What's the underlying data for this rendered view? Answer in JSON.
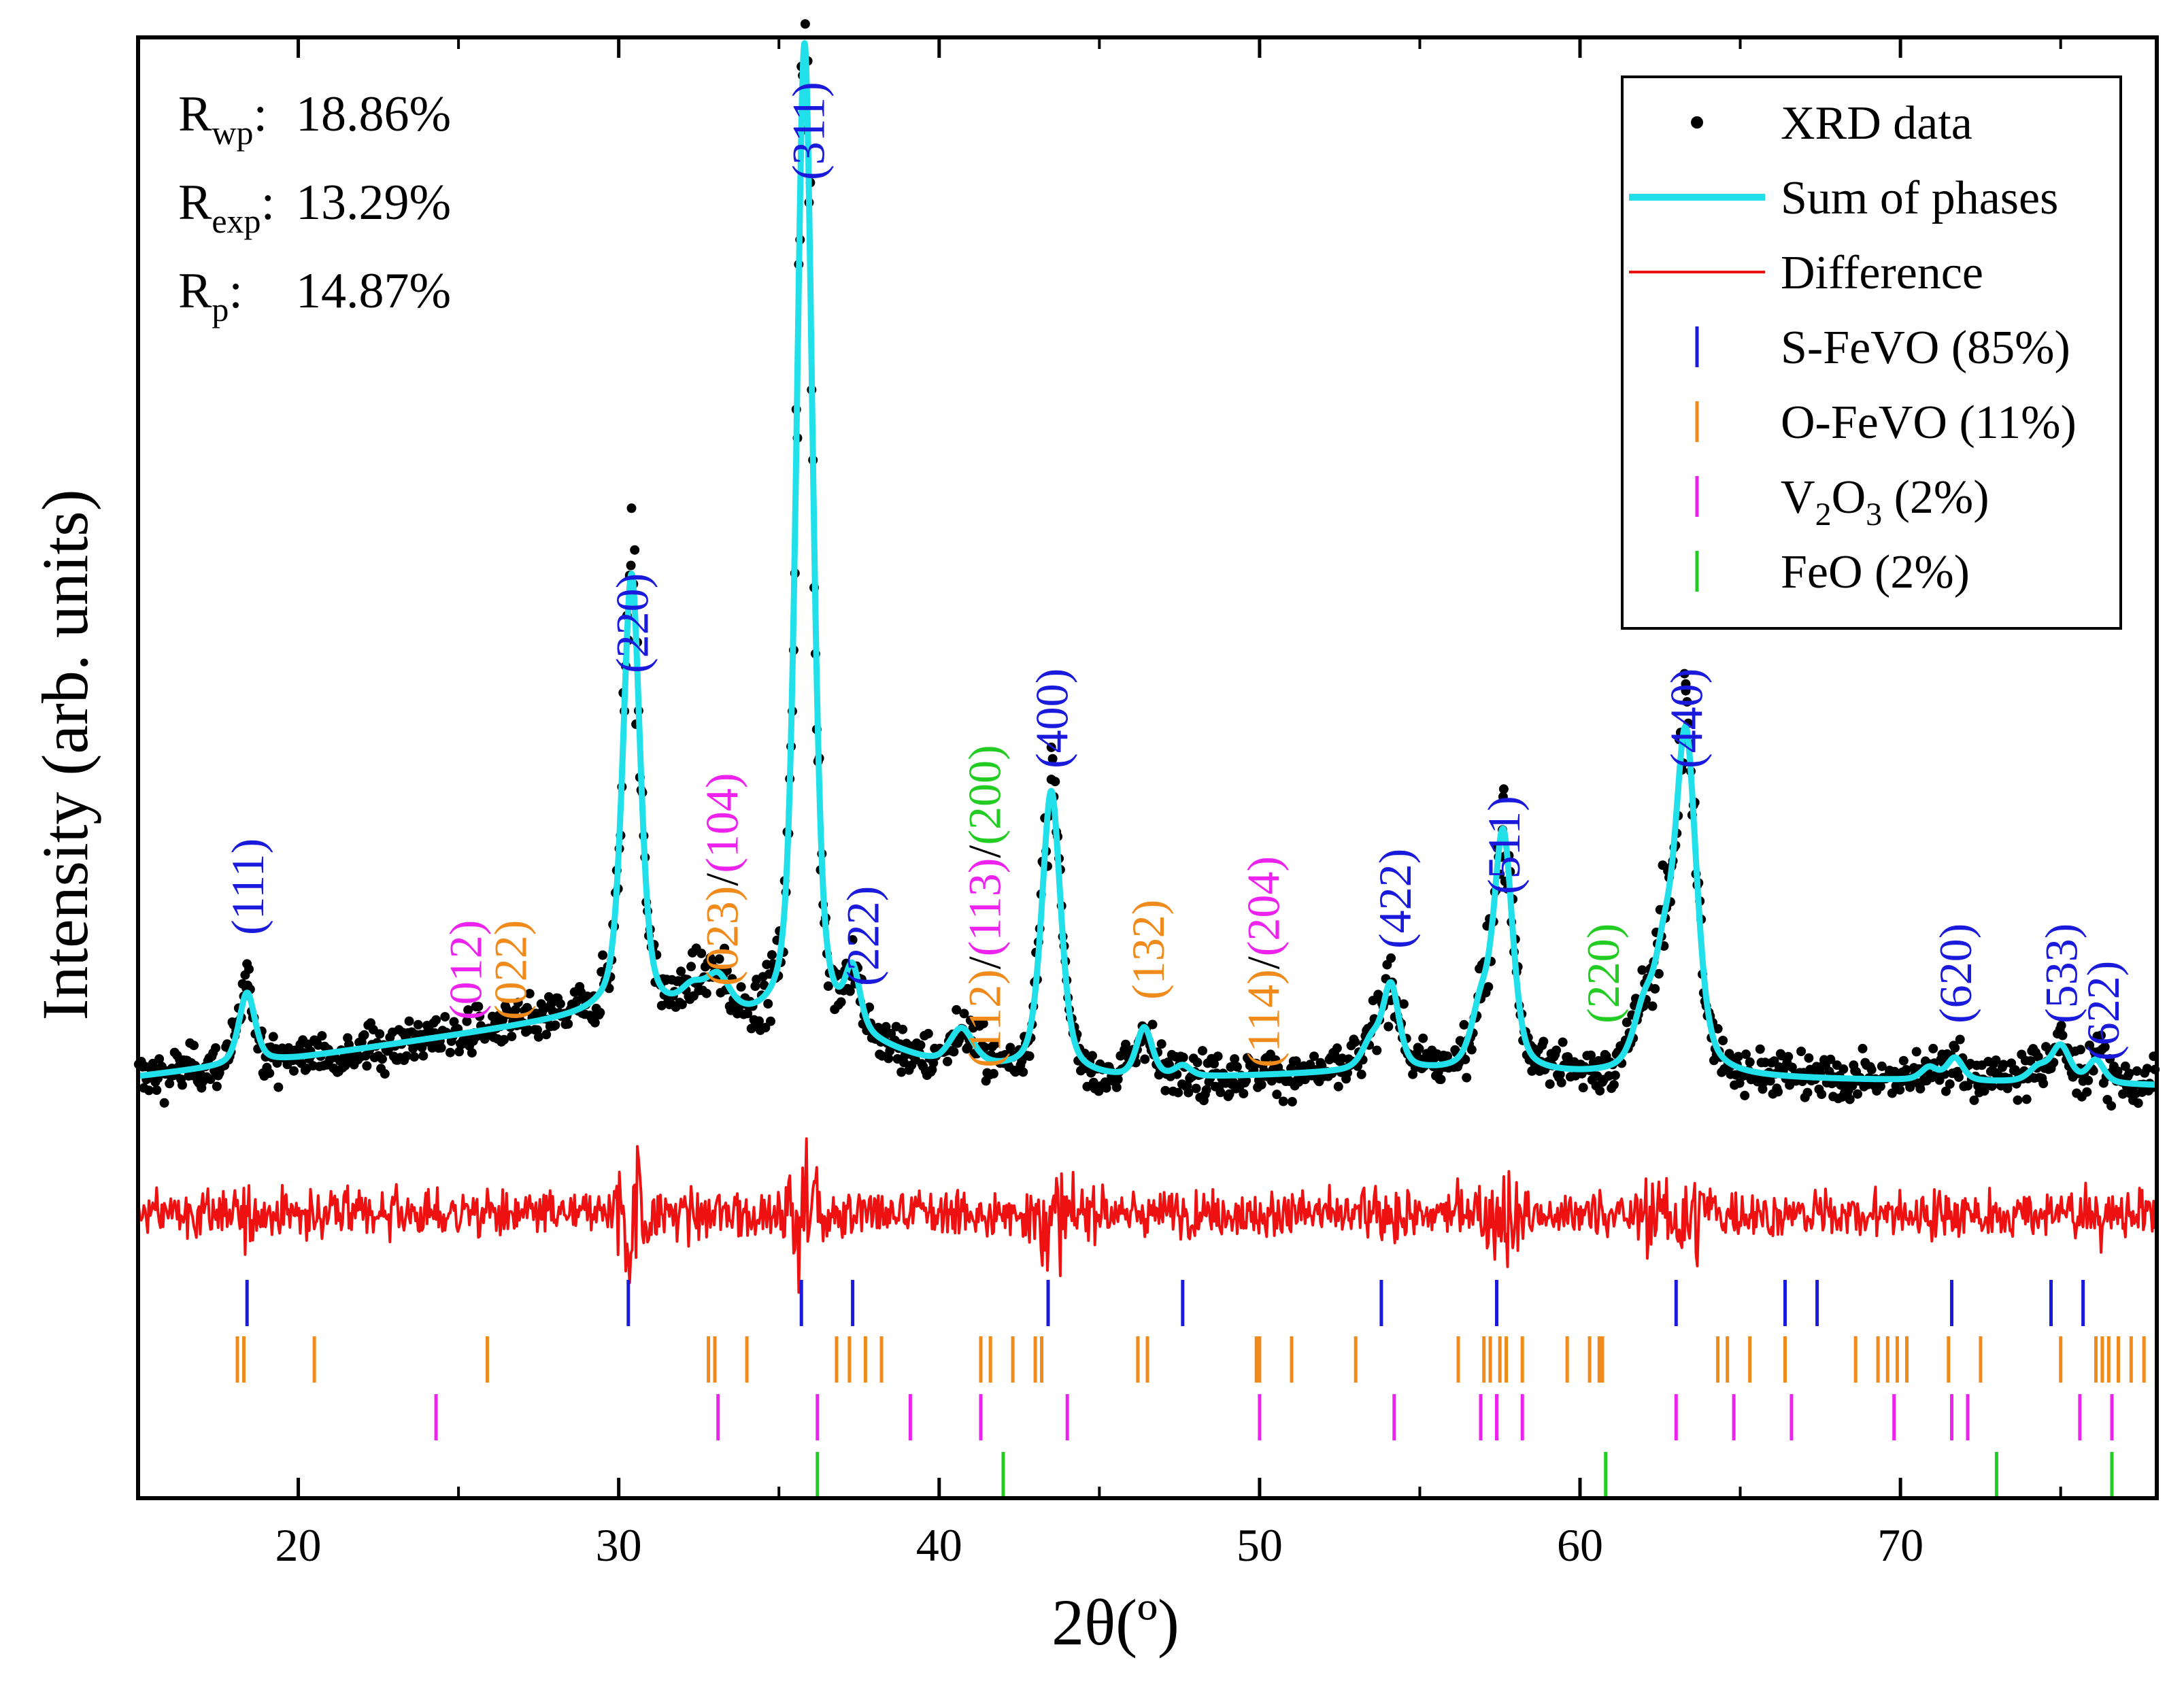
{
  "chart_data": {
    "type": "line",
    "xlabel": "2θ(º)",
    "ylabel": "Intensity (arb. units)",
    "xlim": [
      15,
      78
    ],
    "ylim": [
      0,
      1
    ],
    "x_ticks": [
      20,
      30,
      40,
      50,
      60,
      70
    ],
    "x_tick_labels": [
      "20",
      "30",
      "40",
      "50",
      "60",
      "70"
    ],
    "stats": [
      {
        "label": "R",
        "sub": "wp",
        "value": "18.86%"
      },
      {
        "label": "R",
        "sub": "exp",
        "value": "13.29%"
      },
      {
        "label": "R",
        "sub": "p",
        "value": "14.87%"
      }
    ],
    "legend": {
      "position": "top-right",
      "entries": [
        {
          "key": "xrd",
          "label": "XRD data",
          "color": "#000000",
          "marker": "dot"
        },
        {
          "key": "fit",
          "label": "Sum of phases",
          "color": "#22e0ea",
          "marker": "line-thick"
        },
        {
          "key": "diff",
          "label": "Difference",
          "color": "#ee1111",
          "marker": "line"
        },
        {
          "key": "sfevo",
          "label": "S-FeVO (85%)",
          "color": "#1a1adc",
          "marker": "tick"
        },
        {
          "key": "ofevo",
          "label": "O-FeVO (11%)",
          "color": "#f08a1a",
          "marker": "tick"
        },
        {
          "key": "v2o3",
          "label": "V",
          "sub1": "2",
          "mid": "O",
          "sub2": "3",
          "tail": " (2%)",
          "color": "#ee22ee",
          "marker": "tick"
        },
        {
          "key": "feo",
          "label": "FeO (2%)",
          "color": "#22cc22",
          "marker": "tick"
        }
      ]
    },
    "series": [
      {
        "name": "Sum of phases",
        "color": "#22e0ea",
        "baseline": [
          [
            15,
            0.05
          ],
          [
            20,
            0.07
          ],
          [
            28,
            0.11
          ],
          [
            30,
            0.12
          ],
          [
            36,
            0.1
          ],
          [
            40,
            0.06
          ],
          [
            46,
            0.045
          ],
          [
            54,
            0.055
          ],
          [
            60,
            0.05
          ],
          [
            70,
            0.045
          ],
          [
            78,
            0.04
          ]
        ],
        "peaks": [
          {
            "x": 18.4,
            "height": 0.078,
            "width": 0.3
          },
          {
            "x": 30.4,
            "height": 0.48,
            "width": 0.32
          },
          {
            "x": 32.3,
            "height": 0.025,
            "width": 0.45
          },
          {
            "x": 33.1,
            "height": 0.04,
            "width": 0.45
          },
          {
            "x": 35.8,
            "height": 1.08,
            "width": 0.3
          },
          {
            "x": 37.3,
            "height": 0.065,
            "width": 0.28
          },
          {
            "x": 40.7,
            "height": 0.04,
            "width": 0.45
          },
          {
            "x": 43.5,
            "height": 0.31,
            "width": 0.35
          },
          {
            "x": 46.4,
            "height": 0.055,
            "width": 0.3
          },
          {
            "x": 47.6,
            "height": 0.012,
            "width": 0.3
          },
          {
            "x": 53.5,
            "height": 0.03,
            "width": 0.35
          },
          {
            "x": 54.1,
            "height": 0.09,
            "width": 0.3
          },
          {
            "x": 56.9,
            "height": 0.06,
            "width": 0.35
          },
          {
            "x": 57.6,
            "height": 0.26,
            "width": 0.35
          },
          {
            "x": 62.0,
            "height": 0.06,
            "width": 0.4
          },
          {
            "x": 62.6,
            "height": 0.09,
            "width": 0.35
          },
          {
            "x": 63.3,
            "height": 0.37,
            "width": 0.4
          },
          {
            "x": 70.9,
            "height": 0.014,
            "width": 0.3
          },
          {
            "x": 71.7,
            "height": 0.025,
            "width": 0.3
          },
          {
            "x": 74.3,
            "height": 0.015,
            "width": 0.35
          },
          {
            "x": 75.0,
            "height": 0.04,
            "width": 0.35
          },
          {
            "x": 76.1,
            "height": 0.025,
            "width": 0.3
          }
        ]
      },
      {
        "name": "XRD data",
        "color": "#000000",
        "description": "Observed scatter points following Sum of phases with noise",
        "noise_amplitude": 0.018
      },
      {
        "name": "Difference",
        "color": "#ee1111",
        "description": "Observed minus calculated, offset below pattern",
        "noise_amplitude": 0.018
      }
    ],
    "reflection_ticks": {
      "S-FeVO": [
        18.4,
        30.3,
        35.7,
        37.3,
        43.4,
        47.6,
        53.8,
        57.4,
        63.0,
        66.4,
        67.4,
        71.6,
        74.7,
        75.7
      ],
      "O-FeVO": [
        18.1,
        18.3,
        20.5,
        25.9,
        32.8,
        33.0,
        34.0,
        36.8,
        37.2,
        37.7,
        38.2,
        41.3,
        41.6,
        42.3,
        43.0,
        43.2,
        46.2,
        46.5,
        49.9,
        50.0,
        51.0,
        53.0,
        56.2,
        57.0,
        57.2,
        57.5,
        57.7,
        58.2,
        59.6,
        60.3,
        60.6,
        60.7,
        64.3,
        64.6,
        65.3,
        66.4,
        68.6,
        69.3,
        69.6,
        69.9,
        70.2,
        71.5,
        72.5,
        75.0,
        76.1,
        76.3,
        76.5,
        76.8,
        77.2,
        77.6
      ],
      "V2O3": [
        24.3,
        33.1,
        36.2,
        39.1,
        41.3,
        44.0,
        50.0,
        54.2,
        56.9,
        57.4,
        58.2,
        63.0,
        64.8,
        66.6,
        69.8,
        71.6,
        72.1,
        75.6,
        76.6
      ],
      "FeO": [
        36.2,
        42.0,
        60.8,
        73.0,
        76.6
      ]
    },
    "annotations": [
      {
        "x": 18.4,
        "parts": [
          {
            "t": "(111)",
            "c": "#1a1adc"
          }
        ]
      },
      {
        "x": 25.2,
        "parts": [
          {
            "t": "(012)",
            "c": "#ee22ee"
          }
        ]
      },
      {
        "x": 26.6,
        "parts": [
          {
            "t": "(022)",
            "c": "#f08a1a"
          }
        ]
      },
      {
        "x": 30.4,
        "parts": [
          {
            "t": "(220)",
            "c": "#1a1adc"
          }
        ]
      },
      {
        "x": 33.2,
        "parts": [
          {
            "t": "(023)",
            "c": "#f08a1a"
          },
          {
            "t": "/",
            "c": "#000000"
          },
          {
            "t": "(104)",
            "c": "#ee22ee"
          }
        ]
      },
      {
        "x": 35.9,
        "parts": [
          {
            "t": "(311)",
            "c": "#1a1adc"
          }
        ]
      },
      {
        "x": 37.6,
        "parts": [
          {
            "t": "(222)",
            "c": "#1a1adc"
          }
        ]
      },
      {
        "x": 41.4,
        "parts": [
          {
            "t": "(112)",
            "c": "#f08a1a"
          },
          {
            "t": "/",
            "c": "#000000"
          },
          {
            "t": "(113)",
            "c": "#ee22ee"
          },
          {
            "t": "/",
            "c": "#000000"
          },
          {
            "t": "(200)",
            "c": "#22cc22"
          }
        ]
      },
      {
        "x": 43.5,
        "parts": [
          {
            "t": "(400)",
            "c": "#1a1adc"
          }
        ]
      },
      {
        "x": 46.5,
        "parts": [
          {
            "t": "(132)",
            "c": "#f08a1a"
          }
        ]
      },
      {
        "x": 50.1,
        "parts": [
          {
            "t": "(114)",
            "c": "#f08a1a"
          },
          {
            "t": "/",
            "c": "#000000"
          },
          {
            "t": "(204)",
            "c": "#ee22ee"
          }
        ]
      },
      {
        "x": 54.2,
        "parts": [
          {
            "t": "(422)",
            "c": "#1a1adc"
          }
        ]
      },
      {
        "x": 57.6,
        "parts": [
          {
            "t": "(511)",
            "c": "#1a1adc"
          }
        ]
      },
      {
        "x": 60.7,
        "parts": [
          {
            "t": "(220)",
            "c": "#22cc22"
          }
        ]
      },
      {
        "x": 63.3,
        "parts": [
          {
            "t": "(440)",
            "c": "#1a1adc"
          }
        ]
      },
      {
        "x": 71.7,
        "parts": [
          {
            "t": "(620)",
            "c": "#1a1adc"
          }
        ]
      },
      {
        "x": 75.0,
        "parts": [
          {
            "t": "(533)",
            "c": "#1a1adc"
          }
        ]
      },
      {
        "x": 76.3,
        "parts": [
          {
            "t": "(622)",
            "c": "#1a1adc"
          }
        ]
      }
    ]
  }
}
